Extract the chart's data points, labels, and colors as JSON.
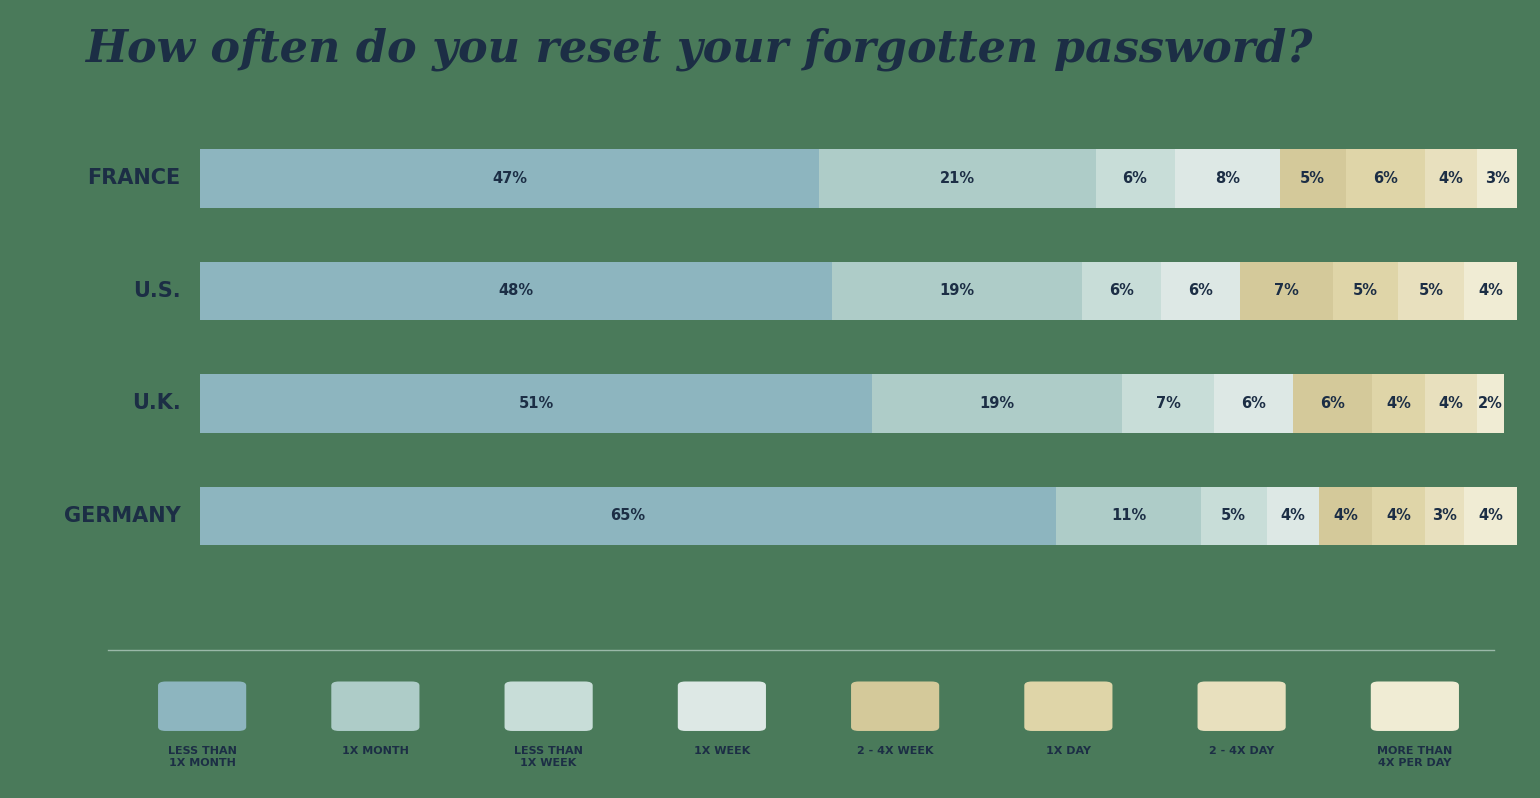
{
  "title": "How often do you reset your forgotten password?",
  "title_color": "#1c2e45",
  "background_color": "#4a7a5a",
  "countries": [
    "FRANCE",
    "U.S.",
    "U.K.",
    "GERMANY"
  ],
  "legend_labels": [
    "LESS THAN\n1X MONTH",
    "1X MONTH",
    "LESS THAN\n1X WEEK",
    "1X WEEK",
    "2 - 4X WEEK",
    "1X DAY",
    "2 - 4X DAY",
    "MORE THAN\n4X PER DAY"
  ],
  "colors": [
    "#8db5bf",
    "#aeccc8",
    "#c8ddd8",
    "#dde8e5",
    "#d4c99a",
    "#dfd5a8",
    "#e8e0be",
    "#f0ecd4"
  ],
  "data": {
    "FRANCE": [
      47,
      21,
      6,
      8,
      5,
      6,
      4,
      3
    ],
    "U.S.": [
      48,
      19,
      6,
      6,
      7,
      5,
      5,
      4
    ],
    "U.K.": [
      51,
      19,
      7,
      6,
      6,
      4,
      4,
      2
    ],
    "GERMANY": [
      65,
      11,
      5,
      4,
      4,
      4,
      3,
      4
    ]
  },
  "label_color": "#1c2e45",
  "bar_height": 0.52,
  "separator_color": "#9ab8a8"
}
